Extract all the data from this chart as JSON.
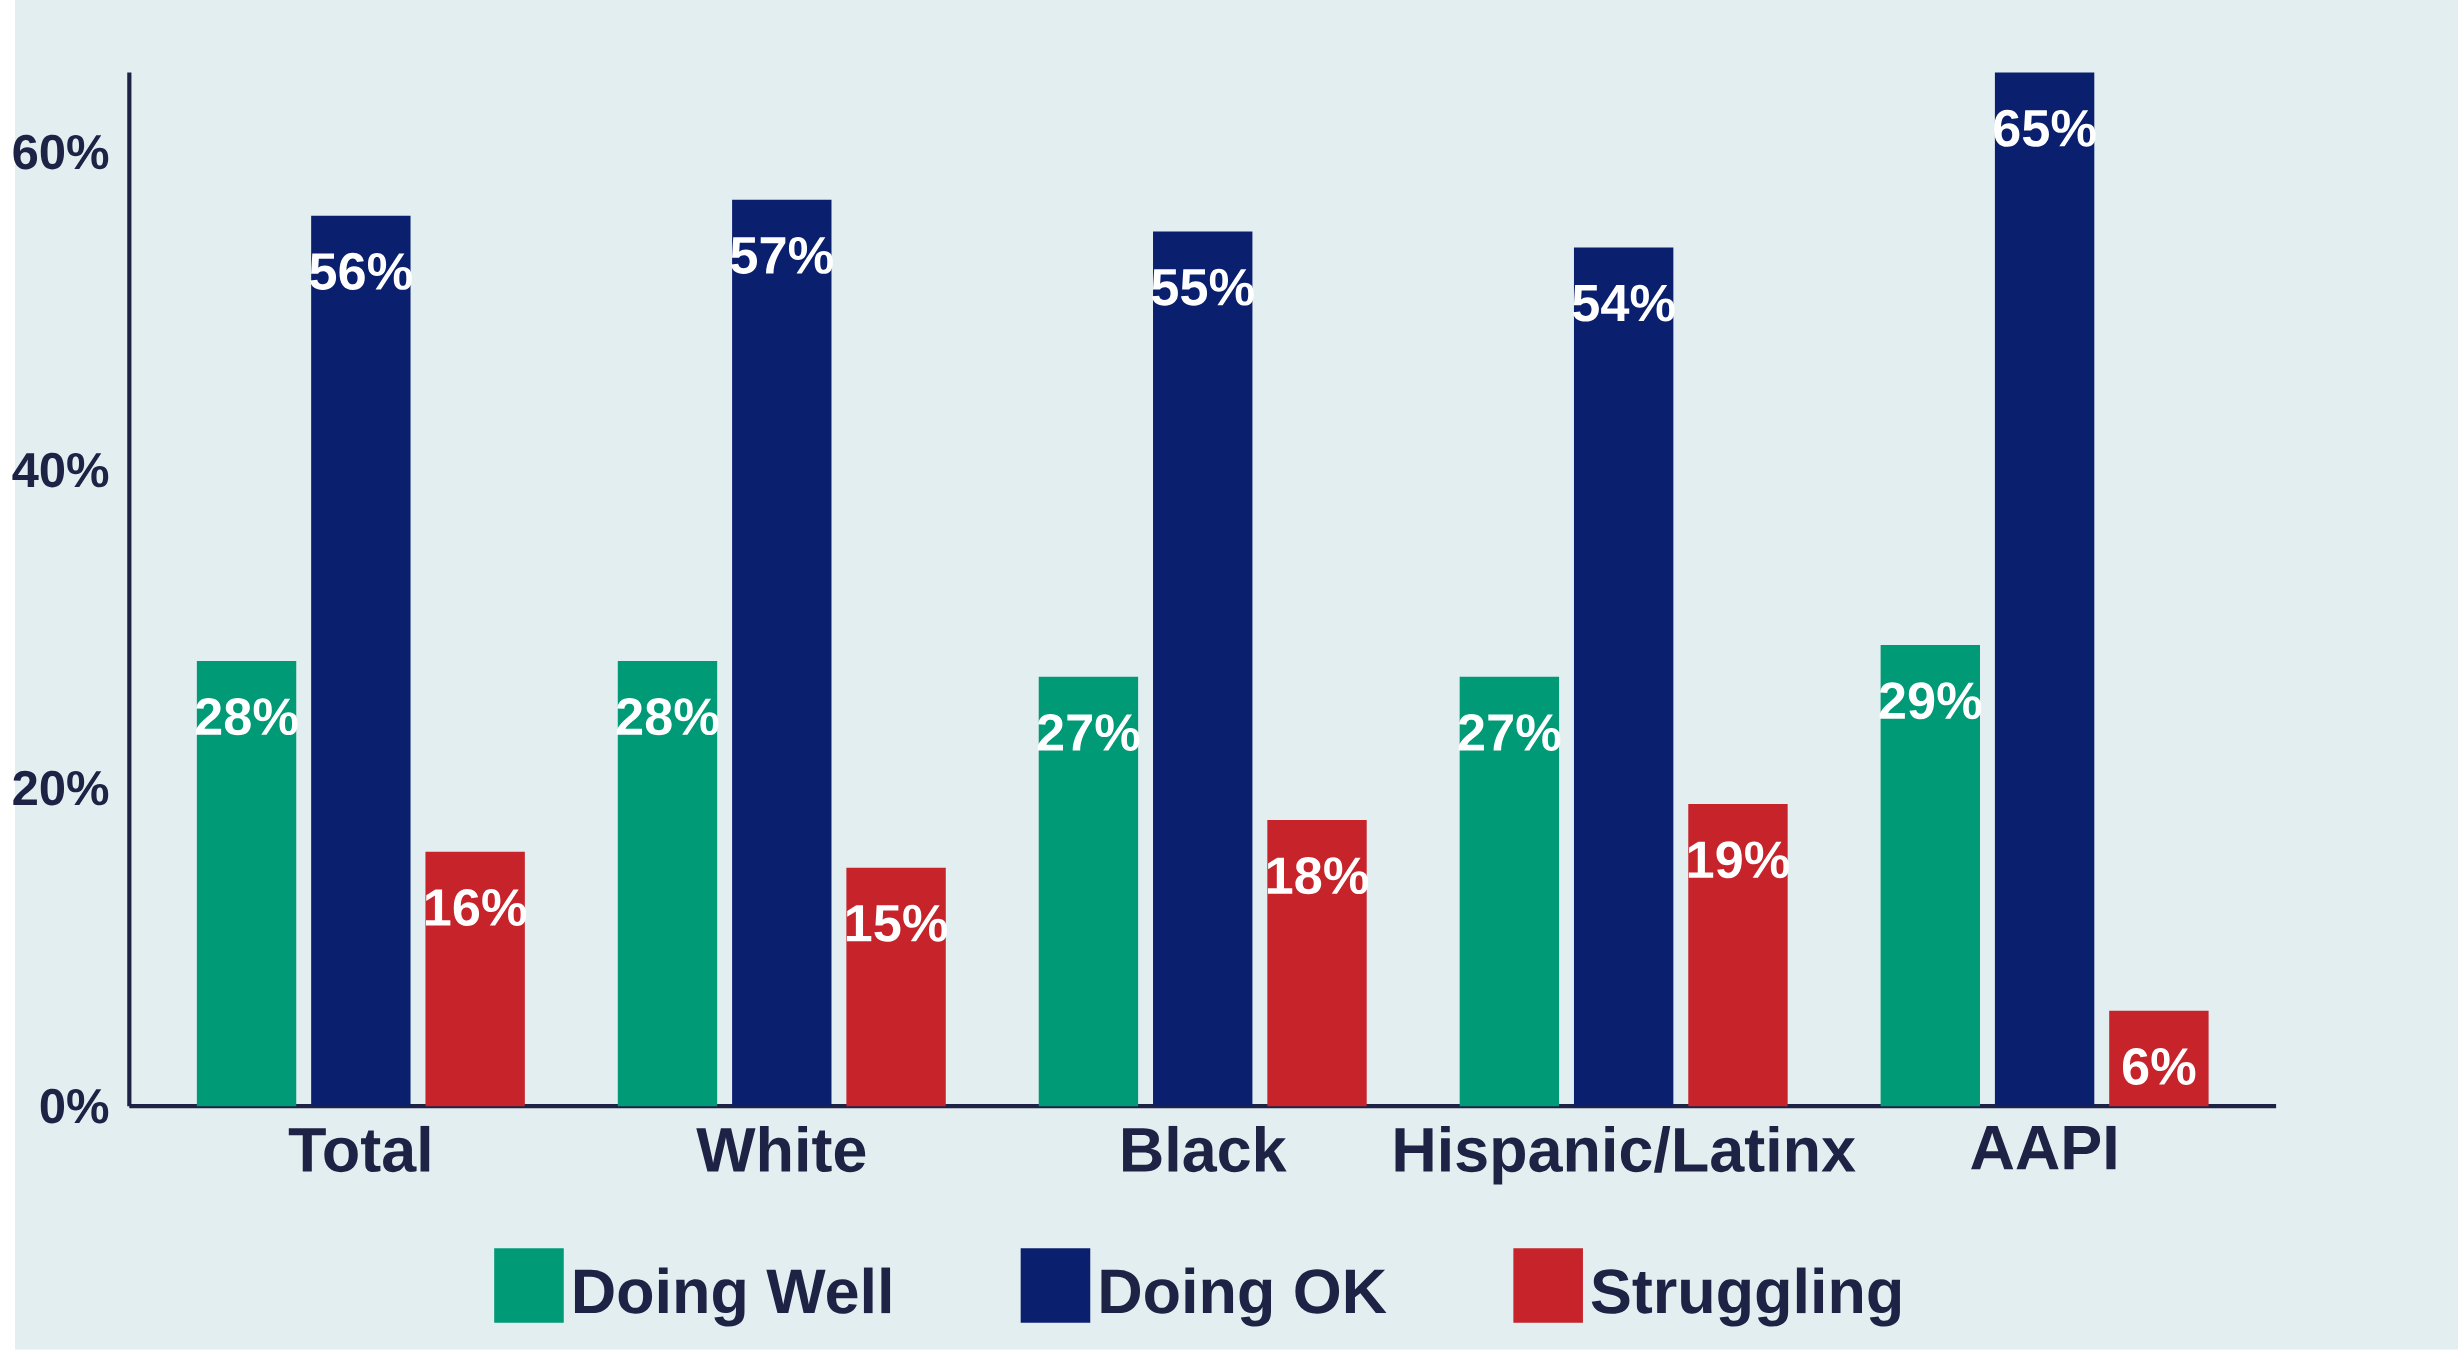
{
  "chart_data": {
    "type": "bar",
    "categories": [
      "Total",
      "White",
      "Black",
      "Hispanic/Latinx",
      "AAPI"
    ],
    "series": [
      {
        "name": "Doing Well",
        "color": "#009a77",
        "values": [
          28,
          28,
          27,
          27,
          29
        ],
        "value_labels": [
          "28%",
          "28%",
          "27%",
          "27%",
          "29%"
        ]
      },
      {
        "name": "Doing OK",
        "color": "#0b1f6f",
        "values": [
          56,
          57,
          55,
          54,
          65
        ],
        "value_labels": [
          "56%",
          "57%",
          "55%",
          "54%",
          "65%"
        ]
      },
      {
        "name": "Struggling",
        "color": "#c6232b",
        "values": [
          16,
          15,
          18,
          19,
          6
        ],
        "value_labels": [
          "16%",
          "15%",
          "18%",
          "19%",
          "6%"
        ]
      }
    ],
    "ylim": [
      0,
      65
    ],
    "yticks": [
      {
        "value": 0,
        "label": "0%"
      },
      {
        "value": 20,
        "label": "20%"
      },
      {
        "value": 40,
        "label": "40%"
      },
      {
        "value": 60,
        "label": "60%"
      }
    ],
    "grid": false,
    "legend": "bottom"
  }
}
